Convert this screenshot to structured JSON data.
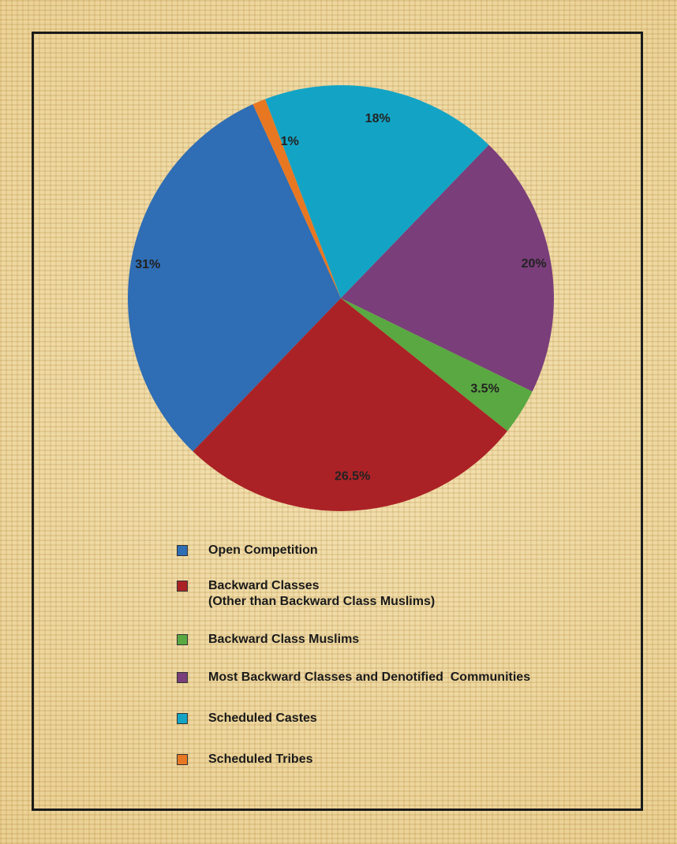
{
  "chart_data": {
    "type": "pie",
    "title": "",
    "slices": [
      {
        "label": "Open Competition",
        "value": 31,
        "display": "31%",
        "color": "#2f6db4"
      },
      {
        "label": "Scheduled Tribes",
        "value": 1,
        "display": "1%",
        "color": "#e87722"
      },
      {
        "label": "Scheduled Castes",
        "value": 18,
        "display": "18%",
        "color": "#13a4c5"
      },
      {
        "label": "Most Backward Classes and Denotified  Communities",
        "value": 20,
        "display": "20%",
        "color": "#7a3e7a"
      },
      {
        "label": "Backward Class Muslims",
        "value": 3.5,
        "display": "3.5%",
        "color": "#5aa842"
      },
      {
        "label": "Backward Classes",
        "sublabel": "(Other than Backward Class Muslims)",
        "value": 26.5,
        "display": "26.5%",
        "color": "#ab2226"
      }
    ],
    "legend": [
      {
        "label": "Open Competition",
        "color": "#2f6db4"
      },
      {
        "label": "Backward Classes",
        "sublabel": "(Other than Backward Class Muslims)",
        "color": "#ab2226"
      },
      {
        "label": "Backward Class Muslims",
        "color": "#5aa842"
      },
      {
        "label": "Most Backward Classes and Denotified  Communities",
        "color": "#7a3e7a"
      },
      {
        "label": "Scheduled Castes",
        "color": "#13a4c5"
      },
      {
        "label": "Scheduled Tribes",
        "color": "#e87722"
      }
    ],
    "legend_position": "bottom"
  }
}
